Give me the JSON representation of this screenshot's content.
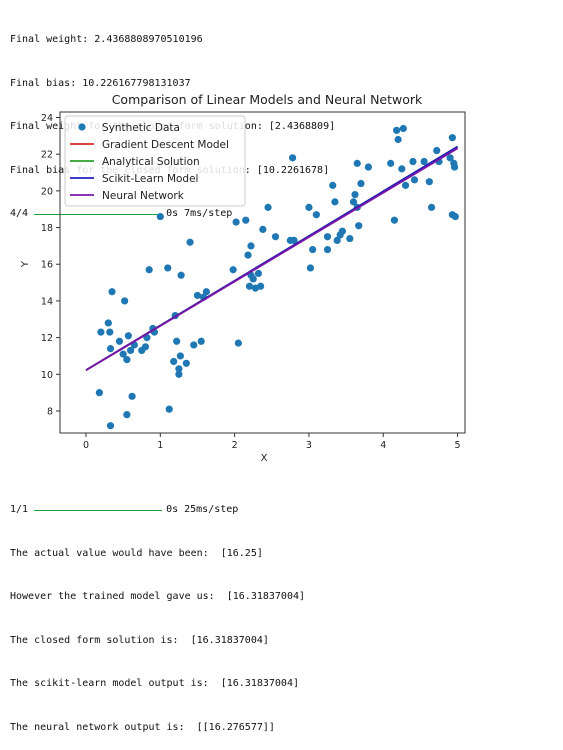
{
  "output_top": {
    "lines": [
      "Final weight: 2.4368808970510196",
      "Final bias: 10.226167798131037",
      "Final weight for the closed form solution: [2.4368809]",
      "Final bias for the closed form solution: [10.2261678]"
    ],
    "progress": {
      "step": "4/4",
      "time": "0s 7ms/step",
      "fraction": 1.0
    }
  },
  "output_bottom": {
    "progress": {
      "step": "1/1",
      "time": "0s 25ms/step",
      "fraction": 1.0
    },
    "lines": [
      "The actual value would have been:  [16.25]",
      "However the trained model gave us:  [16.31837004]",
      "The closed form solution is:  [16.31837004]",
      "The scikit-learn model output is:  [16.31837004]",
      "The neural network output is:  [[16.276577]]"
    ]
  },
  "colors": {
    "scatter": "#1f77b4",
    "gradient_descent": "#d62728",
    "analytical": "#2ca02c",
    "sklearn": "#1f1fbf",
    "neural_net": "#7b14a8",
    "progress_bar": "#1aa33a"
  },
  "chart_data": {
    "type": "scatter",
    "title": "Comparison of Linear Models and Neural Network",
    "xlabel": "X",
    "ylabel": "Y",
    "xlim": [
      -0.35,
      5.1
    ],
    "ylim": [
      6.8,
      24.3
    ],
    "xticks": [
      "0",
      "1",
      "2",
      "3",
      "4",
      "5"
    ],
    "yticks": [
      "8",
      "10",
      "12",
      "14",
      "16",
      "18",
      "20",
      "22",
      "24"
    ],
    "grid": false,
    "legend_position": "top-left",
    "legend": [
      "Synthetic Data",
      "Gradient Descent Model",
      "Analytical Solution",
      "Scikit-Learn Model",
      "Neural Network"
    ],
    "lines": [
      {
        "name": "Gradient Descent Model",
        "slope": 2.4368809,
        "intercept": 10.2261678,
        "x": [
          0,
          5
        ]
      },
      {
        "name": "Analytical Solution",
        "slope": 2.4368809,
        "intercept": 10.2261678,
        "x": [
          0,
          5
        ]
      },
      {
        "name": "Scikit-Learn Model",
        "slope": 2.4368809,
        "intercept": 10.2261678,
        "x": [
          0,
          5
        ]
      },
      {
        "name": "Neural Network",
        "slope": 2.42,
        "intercept": 10.22,
        "x": [
          0,
          5
        ]
      }
    ],
    "points": [
      [
        0.18,
        9.0
      ],
      [
        0.2,
        12.3
      ],
      [
        0.3,
        12.8
      ],
      [
        0.32,
        12.3
      ],
      [
        0.33,
        11.4
      ],
      [
        0.35,
        14.5
      ],
      [
        0.33,
        7.2
      ],
      [
        0.45,
        11.8
      ],
      [
        0.5,
        11.1
      ],
      [
        0.52,
        14.0
      ],
      [
        0.55,
        7.8
      ],
      [
        0.57,
        12.1
      ],
      [
        0.6,
        11.3
      ],
      [
        0.62,
        8.8
      ],
      [
        0.65,
        11.6
      ],
      [
        0.55,
        10.8
      ],
      [
        0.75,
        11.3
      ],
      [
        0.8,
        11.5
      ],
      [
        0.82,
        12.0
      ],
      [
        0.85,
        15.7
      ],
      [
        0.9,
        12.5
      ],
      [
        0.92,
        12.3
      ],
      [
        1.0,
        18.6
      ],
      [
        1.1,
        15.8
      ],
      [
        1.12,
        8.1
      ],
      [
        1.18,
        10.7
      ],
      [
        1.2,
        13.2
      ],
      [
        1.22,
        11.8
      ],
      [
        1.25,
        10.3
      ],
      [
        1.27,
        11.0
      ],
      [
        1.25,
        10.0
      ],
      [
        1.28,
        15.4
      ],
      [
        1.35,
        10.6
      ],
      [
        1.4,
        17.2
      ],
      [
        1.45,
        11.6
      ],
      [
        1.5,
        14.3
      ],
      [
        1.55,
        11.8
      ],
      [
        1.58,
        14.2
      ],
      [
        1.62,
        14.5
      ],
      [
        1.98,
        15.7
      ],
      [
        2.02,
        18.3
      ],
      [
        2.05,
        11.7
      ],
      [
        2.15,
        18.4
      ],
      [
        2.18,
        16.5
      ],
      [
        2.2,
        14.8
      ],
      [
        2.22,
        15.4
      ],
      [
        2.22,
        17.0
      ],
      [
        2.25,
        15.2
      ],
      [
        2.28,
        14.7
      ],
      [
        2.32,
        15.5
      ],
      [
        2.35,
        14.8
      ],
      [
        2.38,
        17.9
      ],
      [
        2.45,
        19.1
      ],
      [
        2.55,
        17.5
      ],
      [
        2.75,
        17.3
      ],
      [
        2.78,
        21.8
      ],
      [
        2.8,
        17.3
      ],
      [
        3.0,
        19.1
      ],
      [
        3.02,
        15.8
      ],
      [
        3.05,
        16.8
      ],
      [
        3.1,
        18.7
      ],
      [
        3.25,
        16.8
      ],
      [
        3.25,
        17.5
      ],
      [
        3.32,
        20.3
      ],
      [
        3.35,
        19.4
      ],
      [
        3.38,
        17.3
      ],
      [
        3.42,
        17.6
      ],
      [
        3.45,
        17.8
      ],
      [
        3.55,
        17.4
      ],
      [
        3.6,
        19.4
      ],
      [
        3.62,
        19.8
      ],
      [
        3.65,
        19.1
      ],
      [
        3.65,
        21.5
      ],
      [
        3.67,
        18.1
      ],
      [
        3.7,
        20.4
      ],
      [
        3.8,
        21.3
      ],
      [
        4.1,
        21.5
      ],
      [
        4.15,
        18.4
      ],
      [
        4.18,
        23.3
      ],
      [
        4.2,
        22.8
      ],
      [
        4.25,
        21.2
      ],
      [
        4.27,
        23.4
      ],
      [
        4.3,
        20.3
      ],
      [
        4.4,
        21.6
      ],
      [
        4.42,
        20.6
      ],
      [
        4.55,
        21.6
      ],
      [
        4.62,
        20.5
      ],
      [
        4.65,
        19.1
      ],
      [
        4.72,
        22.2
      ],
      [
        4.75,
        21.6
      ],
      [
        4.9,
        21.8
      ],
      [
        4.93,
        22.9
      ],
      [
        4.93,
        18.7
      ],
      [
        4.95,
        21.5
      ],
      [
        4.96,
        21.3
      ],
      [
        4.97,
        18.6
      ]
    ]
  }
}
